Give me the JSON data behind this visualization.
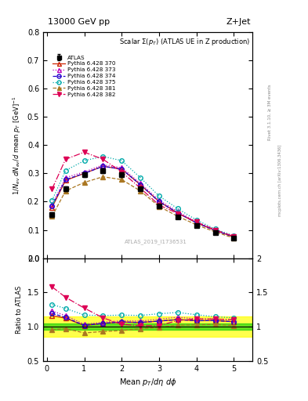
{
  "title_top": "13000 GeV pp",
  "title_right": "Z+Jet",
  "subtitle": "Scalar Σ(p_T) (ATLAS UE in Z production)",
  "watermark": "ATLAS_2019_I1736531",
  "right_label1": "Rivet 3.1.10, ≥ 3M events",
  "right_label2": "mcplots.cern.ch [arXiv:1306.3436]",
  "ylabel_main": "1/N_{ev} dN_{ev}/d mean p_T [GeV]^{-1}",
  "ylabel_ratio": "Ratio to ATLAS",
  "xlabel": "Mean p_T/dη dφ",
  "ylim_main": [
    0.0,
    0.8
  ],
  "ylim_ratio": [
    0.5,
    2.0
  ],
  "xlim": [
    -0.1,
    5.5
  ],
  "x_atlas": [
    0.14,
    0.5,
    1.0,
    1.5,
    2.0,
    2.5,
    3.0,
    3.5,
    4.0,
    4.5,
    5.0
  ],
  "y_atlas": [
    0.155,
    0.245,
    0.295,
    0.31,
    0.295,
    0.245,
    0.185,
    0.145,
    0.115,
    0.09,
    0.07
  ],
  "atlas_err": [
    0.008,
    0.008,
    0.008,
    0.008,
    0.008,
    0.006,
    0.006,
    0.005,
    0.004,
    0.004,
    0.003
  ],
  "series": [
    {
      "label": "Pythia 6.428 370",
      "color": "#cc2200",
      "linestyle": "-",
      "marker": "^",
      "filled": false,
      "x": [
        0.14,
        0.5,
        1.0,
        1.5,
        2.0,
        2.5,
        3.0,
        3.5,
        4.0,
        4.5,
        5.0
      ],
      "y": [
        0.18,
        0.275,
        0.3,
        0.325,
        0.315,
        0.26,
        0.2,
        0.16,
        0.125,
        0.098,
        0.075
      ]
    },
    {
      "label": "Pythia 6.428 373",
      "color": "#bb00bb",
      "linestyle": ":",
      "marker": "^",
      "filled": false,
      "x": [
        0.14,
        0.5,
        1.0,
        1.5,
        2.0,
        2.5,
        3.0,
        3.5,
        4.0,
        4.5,
        5.0
      ],
      "y": [
        0.19,
        0.285,
        0.305,
        0.33,
        0.32,
        0.265,
        0.205,
        0.165,
        0.128,
        0.1,
        0.077
      ]
    },
    {
      "label": "Pythia 6.428 374",
      "color": "#2200cc",
      "linestyle": "--",
      "marker": "o",
      "filled": false,
      "x": [
        0.14,
        0.5,
        1.0,
        1.5,
        2.0,
        2.5,
        3.0,
        3.5,
        4.0,
        4.5,
        5.0
      ],
      "y": [
        0.185,
        0.278,
        0.3,
        0.325,
        0.315,
        0.26,
        0.2,
        0.16,
        0.125,
        0.098,
        0.075
      ]
    },
    {
      "label": "Pythia 6.428 375",
      "color": "#00aaaa",
      "linestyle": ":",
      "marker": "o",
      "filled": false,
      "x": [
        0.14,
        0.5,
        1.0,
        1.5,
        2.0,
        2.5,
        3.0,
        3.5,
        4.0,
        4.5,
        5.0
      ],
      "y": [
        0.205,
        0.31,
        0.345,
        0.36,
        0.345,
        0.285,
        0.22,
        0.175,
        0.135,
        0.103,
        0.079
      ]
    },
    {
      "label": "Pythia 6.428 381",
      "color": "#aa7722",
      "linestyle": "--",
      "marker": "^",
      "filled": true,
      "x": [
        0.14,
        0.5,
        1.0,
        1.5,
        2.0,
        2.5,
        3.0,
        3.5,
        4.0,
        4.5,
        5.0
      ],
      "y": [
        0.148,
        0.238,
        0.268,
        0.288,
        0.278,
        0.238,
        0.183,
        0.148,
        0.118,
        0.093,
        0.071
      ]
    },
    {
      "label": "Pythia 6.428 382",
      "color": "#dd0055",
      "linestyle": "-.",
      "marker": "v",
      "filled": true,
      "x": [
        0.14,
        0.5,
        1.0,
        1.5,
        2.0,
        2.5,
        3.0,
        3.5,
        4.0,
        4.5,
        5.0
      ],
      "y": [
        0.245,
        0.35,
        0.375,
        0.35,
        0.305,
        0.248,
        0.188,
        0.158,
        0.128,
        0.1,
        0.077
      ]
    }
  ],
  "green_band": [
    0.95,
    1.05
  ],
  "yellow_band": [
    0.85,
    1.15
  ]
}
